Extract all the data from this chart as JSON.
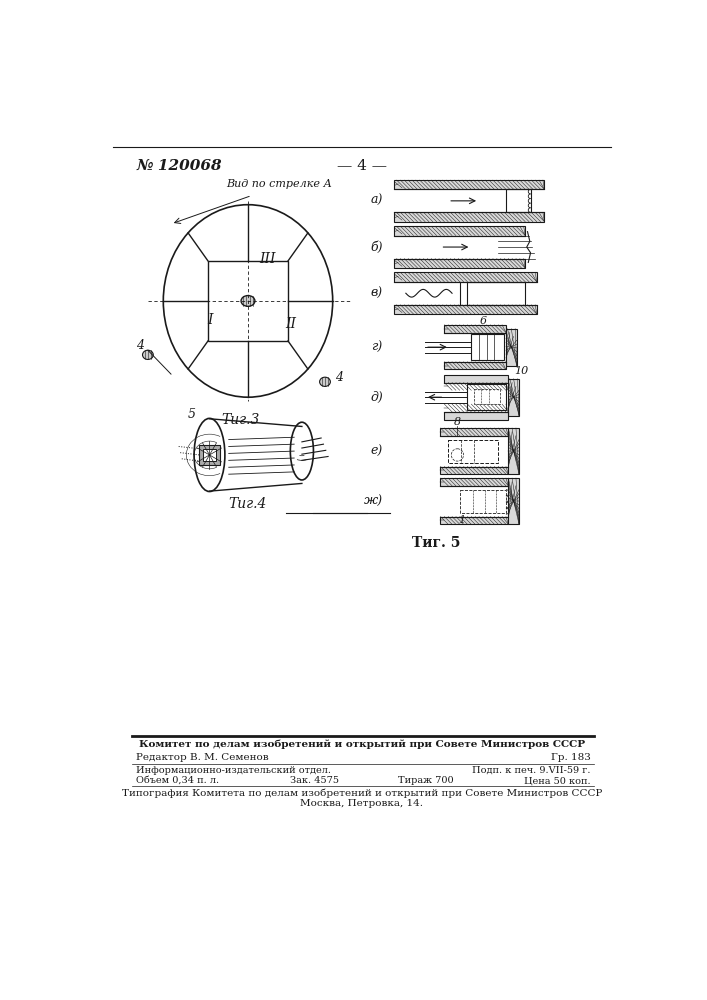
{
  "page_number": "№ 120068",
  "page_num_center": "— 4 —",
  "fig3_label": "Τиг.3",
  "fig4_label": "Τиг.4",
  "fig5_label": "Τиг. 5",
  "view_label": "Вид по стрелке А",
  "roman_I": "I",
  "roman_II": "II",
  "roman_III": "III",
  "label_4a": "4",
  "label_4b": "4",
  "label_5": "5",
  "label_6": "6",
  "label_8": "8",
  "label_10": "10",
  "label_1": "1",
  "fig5_labels": [
    "а)",
    "б)",
    "в)",
    "г)",
    "д)",
    "е)",
    "ж)"
  ],
  "footer_line1": "Комитет по делам изобретений и открытий при Совете Министров СССР",
  "footer_line2_left": "Редактор В. М. Семенов",
  "footer_line2_right": "Гр. 183",
  "footer_line3_left": "Информационно-издательский отдел.",
  "footer_line3_right": "Подп. к печ. 9.VII-59 г.",
  "footer_line4_left1": "Объем 0,34 п. л.",
  "footer_line4_left2": "Зак. 4575",
  "footer_line4_mid": "Тираж 700",
  "footer_line4_right": "Цена 50 коп.",
  "footer_line5": "Типография Комитета по делам изобретений и открытий при Совете Министров СССР",
  "footer_line6": "Москва, Петровка, 14.",
  "bg_color": "#ffffff",
  "ink_color": "#1a1a1a"
}
